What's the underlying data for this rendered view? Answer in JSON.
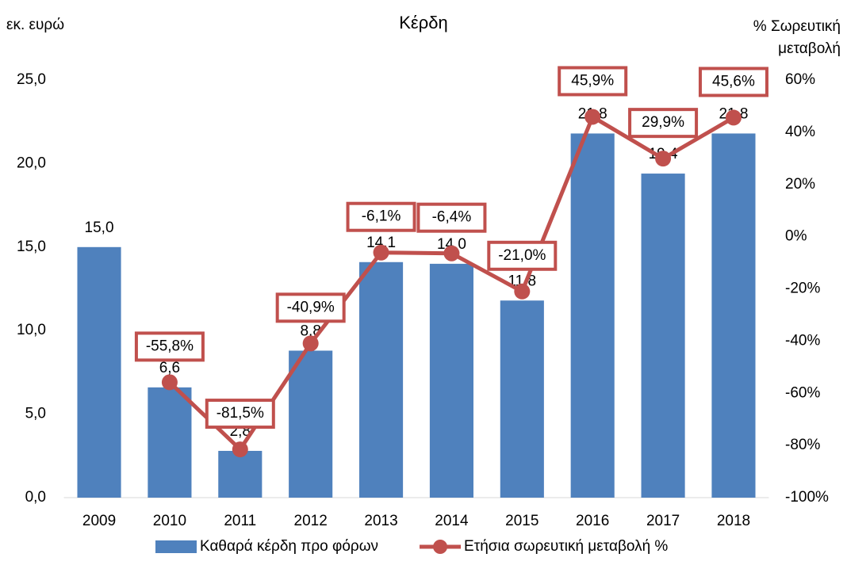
{
  "chart_data": {
    "type": "bar-line",
    "title": "Κέρδη",
    "ylabel": "εκ. ευρώ",
    "y2label": [
      "% Σωρευτική",
      "μεταβολή"
    ],
    "categories": [
      "2009",
      "2010",
      "2011",
      "2012",
      "2013",
      "2014",
      "2015",
      "2016",
      "2017",
      "2018"
    ],
    "series": [
      {
        "name": "Καθαρά κέρδη προ φόρων",
        "type": "bar",
        "color": "#4f81bd",
        "values": [
          15.0,
          6.6,
          2.8,
          8.8,
          14.1,
          14.0,
          11.8,
          21.8,
          19.4,
          21.8
        ],
        "value_labels": [
          "15,0",
          "6,6",
          "2,8",
          "8,8",
          "14,1",
          "14,0",
          "11,8",
          "21,8",
          "19,4",
          "21,8"
        ]
      },
      {
        "name": "Ετήσια σωρευτική μεταβολή %",
        "type": "line",
        "axis": "y2",
        "color": "#c0504d",
        "values": [
          null,
          -55.8,
          -81.5,
          -40.9,
          -6.1,
          -6.4,
          -21.0,
          45.9,
          29.9,
          45.6
        ],
        "value_labels": [
          null,
          "-55,8%",
          "-81,5%",
          "-40,9%",
          "-6,1%",
          "-6,4%",
          "-21,0%",
          "45,9%",
          "29,9%",
          "45,6%"
        ]
      }
    ],
    "ylim": [
      0,
      25
    ],
    "yticks": [
      {
        "value": 0,
        "label": "0,0"
      },
      {
        "value": 5,
        "label": "5,0"
      },
      {
        "value": 10,
        "label": "10,0"
      },
      {
        "value": 15,
        "label": "15,0"
      },
      {
        "value": 20,
        "label": "20,0"
      },
      {
        "value": 25,
        "label": "25,0"
      }
    ],
    "y2lim": [
      -100,
      60
    ],
    "y2ticks": [
      {
        "value": -100,
        "label": "-100%"
      },
      {
        "value": -80,
        "label": "-80%"
      },
      {
        "value": -60,
        "label": "-60%"
      },
      {
        "value": -40,
        "label": "-40%"
      },
      {
        "value": -20,
        "label": "-20%"
      },
      {
        "value": 0,
        "label": "0%"
      },
      {
        "value": 20,
        "label": "20%"
      },
      {
        "value": 40,
        "label": "40%"
      },
      {
        "value": 60,
        "label": "60%"
      }
    ],
    "grid": false,
    "legend": "bottom"
  }
}
